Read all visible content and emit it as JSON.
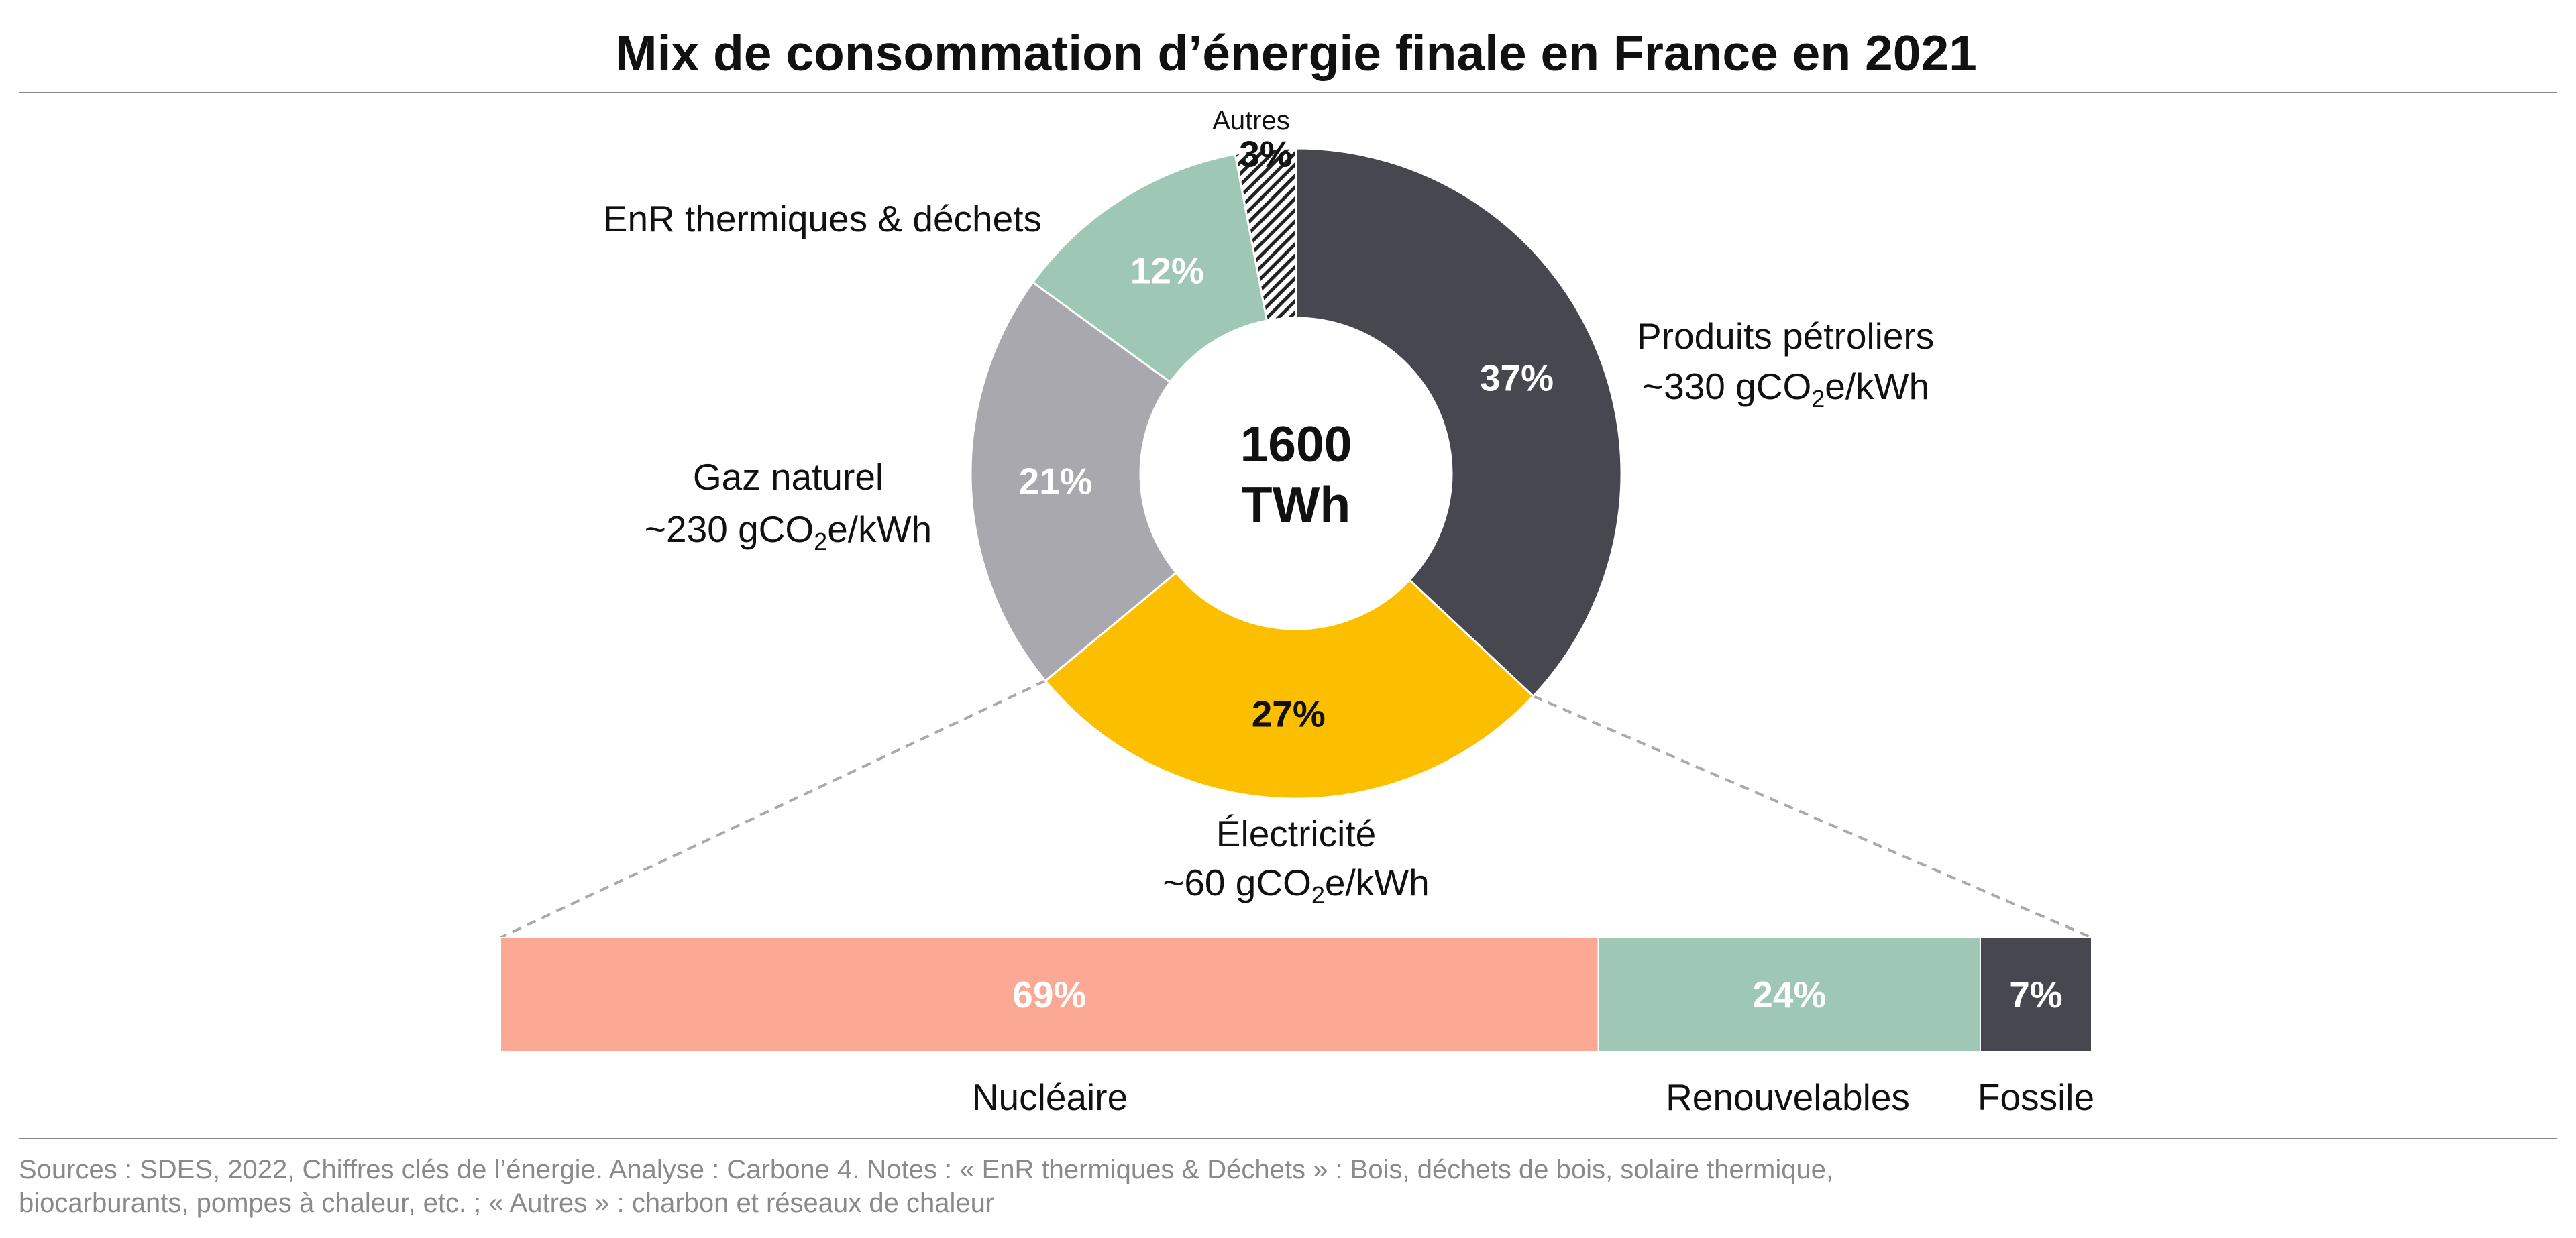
{
  "title": "Mix de consommation d’énergie finale en France en 2021",
  "center": {
    "value": "1600",
    "unit": "TWh"
  },
  "colors": {
    "produits_petroliers": "#47474f",
    "electricite": "#fcbf00",
    "gaz_naturel": "#a8a8ae",
    "enr": "#9fc7b6",
    "autres_hatch": "#222222",
    "nucleaire": "#fba894",
    "renouvelables": "#9fc7b6",
    "fossile": "#47474f",
    "connector": "#aaaaaa",
    "rule": "#888888"
  },
  "chart_data": [
    {
      "type": "pie",
      "title": "Mix de consommation d’énergie finale en France en 2021",
      "total": "1600 TWh",
      "slices": [
        {
          "name": "Produits pétroliers",
          "value": 37,
          "value_label": "37%",
          "emission": "~330 gCO2e/kWh",
          "emission_pre": "~330 gCO",
          "emission_sub": "2",
          "emission_post": "e/kWh",
          "color": "#47474f"
        },
        {
          "name": "Électricité",
          "value": 27,
          "value_label": "27%",
          "emission": "~60 gCO2e/kWh",
          "emission_pre": "~60 gCO",
          "emission_sub": "2",
          "emission_post": "e/kWh",
          "color": "#fcbf00"
        },
        {
          "name": "Gaz naturel",
          "value": 21,
          "value_label": "21%",
          "emission": "~230 gCO2e/kWh",
          "emission_pre": "~230 gCO",
          "emission_sub": "2",
          "emission_post": "e/kWh",
          "color": "#a8a8ae"
        },
        {
          "name": "EnR thermiques & déchets",
          "value": 12,
          "value_label": "12%",
          "color": "#9fc7b6"
        },
        {
          "name": "Autres",
          "value": 3,
          "value_label": "3%",
          "pattern": "hatch"
        }
      ]
    },
    {
      "type": "bar",
      "orientation": "horizontal-stacked",
      "parent": "Électricité",
      "categories": [
        "Nucléaire",
        "Renouvelables",
        "Fossile"
      ],
      "values": [
        69,
        24,
        7
      ],
      "value_labels": [
        "69%",
        "24%",
        "7%"
      ],
      "colors": [
        "#fba894",
        "#9fc7b6",
        "#47474f"
      ]
    }
  ],
  "footnote": {
    "line1": "Sources : SDES, 2022, Chiffres clés de l’énergie. Analyse : Carbone 4. Notes : « EnR thermiques & Déchets » : Bois, déchets de bois, solaire thermique,",
    "line2": "biocarburants, pompes à chaleur, etc. ; « Autres » : charbon et réseaux de chaleur"
  }
}
